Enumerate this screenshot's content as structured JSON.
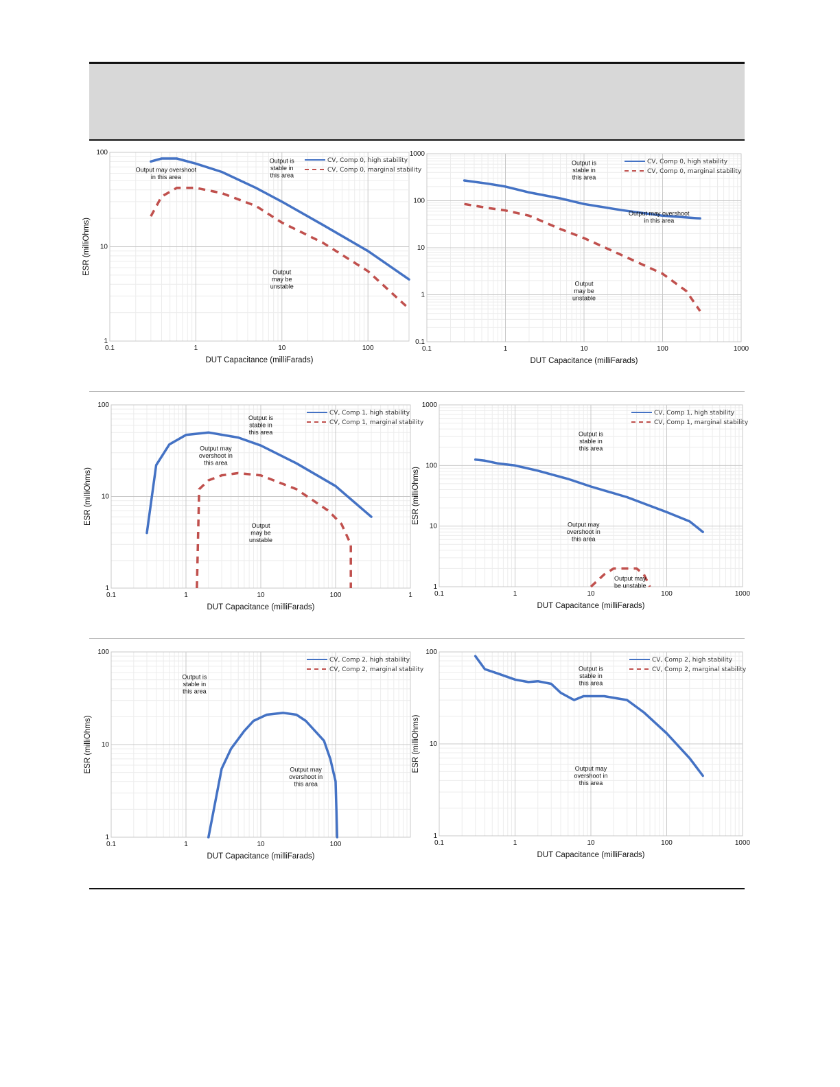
{
  "chart_data": [
    {
      "type": "line",
      "xlabel": "DUT Capacitance (milliFarads)",
      "ylabel": "ESR (milliOhms)",
      "x_scale": "log",
      "y_scale": "log",
      "xlim": [
        0.1,
        300
      ],
      "ylim": [
        1,
        100
      ],
      "xticks": [
        "0.1",
        "1",
        "10",
        "100"
      ],
      "yticks": [
        "1",
        "10",
        "100"
      ],
      "legend_position": "top-right",
      "series": [
        {
          "name": "CV, Comp 0, high stability",
          "color": "#4472c4",
          "dash": false,
          "points": [
            [
              0.3,
              80
            ],
            [
              0.4,
              86
            ],
            [
              0.6,
              86
            ],
            [
              1,
              76
            ],
            [
              2,
              62
            ],
            [
              5,
              42
            ],
            [
              10,
              30
            ],
            [
              30,
              17
            ],
            [
              100,
              9
            ],
            [
              300,
              4.5
            ]
          ]
        },
        {
          "name": "CV, Comp 0, marginal stability",
          "color": "#c0504d",
          "dash": true,
          "points": [
            [
              0.3,
              21
            ],
            [
              0.4,
              34
            ],
            [
              0.6,
              42
            ],
            [
              1,
              42
            ],
            [
              2,
              37
            ],
            [
              5,
              27
            ],
            [
              10,
              18
            ],
            [
              30,
              11
            ],
            [
              100,
              5.5
            ],
            [
              300,
              2.2
            ]
          ]
        }
      ],
      "annotations": [
        {
          "lines": [
            "Output may overshoot",
            "in this area"
          ],
          "x": 0.45,
          "y": 60
        },
        {
          "lines": [
            "Output is",
            "stable in",
            "this area"
          ],
          "x": 10,
          "y": 68
        },
        {
          "lines": [
            "Output",
            "may be",
            "unstable"
          ],
          "x": 10,
          "y": 4.5
        }
      ]
    },
    {
      "type": "line",
      "xlabel": "DUT Capacitance (milliFarads)",
      "ylabel": "",
      "x_scale": "log",
      "y_scale": "log",
      "xlim": [
        0.1,
        1000
      ],
      "ylim": [
        0.1,
        1000
      ],
      "xticks": [
        "0.1",
        "1",
        "10",
        "100",
        "1000"
      ],
      "yticks": [
        "0.1",
        "1",
        "10",
        "100",
        "1000"
      ],
      "legend_position": "top-right",
      "series": [
        {
          "name": "CV, Comp 0, high stability",
          "color": "#4472c4",
          "dash": false,
          "points": [
            [
              0.3,
              270
            ],
            [
              0.6,
              230
            ],
            [
              1,
              200
            ],
            [
              2,
              150
            ],
            [
              5,
              112
            ],
            [
              10,
              85
            ],
            [
              30,
              63
            ],
            [
              100,
              48
            ],
            [
              300,
              42
            ]
          ]
        },
        {
          "name": "CV, Comp 0, marginal stability",
          "color": "#c0504d",
          "dash": true,
          "points": [
            [
              0.3,
              85
            ],
            [
              0.6,
              70
            ],
            [
              1,
              62
            ],
            [
              2,
              48
            ],
            [
              5,
              25
            ],
            [
              10,
              16
            ],
            [
              30,
              7
            ],
            [
              100,
              2.8
            ],
            [
              200,
              1.2
            ],
            [
              300,
              0.45
            ]
          ]
        }
      ],
      "annotations": [
        {
          "lines": [
            "Output is",
            "stable in",
            "this area"
          ],
          "x": 10,
          "y": 450
        },
        {
          "lines": [
            "Output may overshoot",
            "in this area"
          ],
          "x": 90,
          "y": 45
        },
        {
          "lines": [
            "Output",
            "may be",
            "unstable"
          ],
          "x": 10,
          "y": 1.2
        }
      ]
    },
    {
      "type": "line",
      "xlabel": "DUT Capacitance (milliFarads)",
      "ylabel": "ESR (milliOhms)",
      "x_scale": "log",
      "y_scale": "log",
      "xlim": [
        0.1,
        1000
      ],
      "ylim": [
        1,
        100
      ],
      "xticks": [
        "0.1",
        "1",
        "10",
        "100",
        "1"
      ],
      "yticks": [
        "1",
        "10",
        "100"
      ],
      "legend_position": "top-right",
      "series": [
        {
          "name": "CV, Comp 1, high stability",
          "color": "#4472c4",
          "dash": false,
          "points": [
            [
              0.3,
              4
            ],
            [
              0.4,
              22
            ],
            [
              0.6,
              37
            ],
            [
              1,
              47
            ],
            [
              2,
              50
            ],
            [
              5,
              44
            ],
            [
              10,
              36
            ],
            [
              30,
              23
            ],
            [
              100,
              13
            ],
            [
              300,
              6
            ]
          ]
        },
        {
          "name": "CV, Comp 1, marginal stability",
          "color": "#c0504d",
          "dash": true,
          "points": [
            [
              1.4,
              1
            ],
            [
              1.5,
              12
            ],
            [
              2,
              15
            ],
            [
              3,
              17
            ],
            [
              5,
              18
            ],
            [
              10,
              17
            ],
            [
              30,
              12
            ],
            [
              80,
              7
            ],
            [
              120,
              5
            ],
            [
              160,
              3
            ],
            [
              160,
              1
            ]
          ]
        }
      ],
      "annotations": [
        {
          "lines": [
            "Output is",
            "stable in",
            "this area"
          ],
          "x": 10,
          "y": 60
        },
        {
          "lines": [
            "Output may",
            "overshoot in",
            "this area"
          ],
          "x": 2.5,
          "y": 28
        },
        {
          "lines": [
            "Output",
            "may be",
            "unstable"
          ],
          "x": 10,
          "y": 4
        }
      ]
    },
    {
      "type": "line",
      "xlabel": "DUT Capacitance (milliFarads)",
      "ylabel": "ESR (milliOhms)",
      "x_scale": "log",
      "y_scale": "log",
      "xlim": [
        0.1,
        1000
      ],
      "ylim": [
        1,
        1000
      ],
      "xticks": [
        "0.1",
        "1",
        "10",
        "100",
        "1000"
      ],
      "yticks": [
        "1",
        "10",
        "100",
        "1000"
      ],
      "legend_position": "top-right",
      "series": [
        {
          "name": "CV, Comp 1, high stability",
          "color": "#4472c4",
          "dash": false,
          "points": [
            [
              0.3,
              125
            ],
            [
              0.4,
              120
            ],
            [
              0.6,
              108
            ],
            [
              1,
              100
            ],
            [
              2,
              82
            ],
            [
              5,
              60
            ],
            [
              10,
              45
            ],
            [
              30,
              30
            ],
            [
              100,
              17
            ],
            [
              200,
              12
            ],
            [
              300,
              8
            ]
          ]
        },
        {
          "name": "CV, Comp 1, marginal stability",
          "color": "#c0504d",
          "dash": true,
          "points": [
            [
              10,
              1
            ],
            [
              15,
              1.6
            ],
            [
              20,
              2
            ],
            [
              40,
              2
            ],
            [
              50,
              1.6
            ],
            [
              60,
              1
            ]
          ]
        }
      ],
      "annotations": [
        {
          "lines": [
            "Output is",
            "stable in",
            "this area"
          ],
          "x": 10,
          "y": 250
        },
        {
          "lines": [
            "Output may",
            "overshoot in",
            "this area"
          ],
          "x": 8,
          "y": 8
        },
        {
          "lines": [
            "Output may",
            "be unstable"
          ],
          "x": 33,
          "y": 1.2
        }
      ]
    },
    {
      "type": "line",
      "xlabel": "DUT Capacitance (milliFarads)",
      "ylabel": "ESR (milliOhms)",
      "x_scale": "log",
      "y_scale": "log",
      "xlim": [
        0.1,
        1000
      ],
      "ylim": [
        1,
        100
      ],
      "xticks": [
        "0.1",
        "1",
        "10",
        "100"
      ],
      "yticks": [
        "1",
        "10",
        "100"
      ],
      "legend_position": "top-right",
      "series": [
        {
          "name": "CV, Comp 2, high stability",
          "color": "#4472c4",
          "dash": false,
          "points": [
            [
              2,
              1
            ],
            [
              3,
              5.5
            ],
            [
              4,
              9
            ],
            [
              6,
              14
            ],
            [
              8,
              18
            ],
            [
              12,
              21
            ],
            [
              20,
              22
            ],
            [
              30,
              21
            ],
            [
              40,
              18
            ],
            [
              70,
              11
            ],
            [
              85,
              7
            ],
            [
              100,
              4
            ],
            [
              105,
              1
            ]
          ]
        },
        {
          "name": "CV, Comp 2, marginal stability",
          "color": "#c0504d",
          "dash": true,
          "points": []
        }
      ],
      "annotations": [
        {
          "lines": [
            "Output is",
            "stable in",
            "this area"
          ],
          "x": 1.3,
          "y": 45
        },
        {
          "lines": [
            "Output may",
            "overshoot in",
            "this area"
          ],
          "x": 40,
          "y": 4.5
        }
      ]
    },
    {
      "type": "line",
      "xlabel": "DUT Capacitance (milliFarads)",
      "ylabel": "ESR (milliOhms)",
      "x_scale": "log",
      "y_scale": "log",
      "xlim": [
        0.1,
        1000
      ],
      "ylim": [
        1,
        100
      ],
      "xticks": [
        "0.1",
        "1",
        "10",
        "100",
        "1000"
      ],
      "yticks": [
        "1",
        "10",
        "100"
      ],
      "legend_position": "top-right",
      "series": [
        {
          "name": "CV, Comp 2, high stability",
          "color": "#4472c4",
          "dash": false,
          "points": [
            [
              0.3,
              90
            ],
            [
              0.4,
              65
            ],
            [
              0.6,
              58
            ],
            [
              1,
              50
            ],
            [
              1.5,
              47
            ],
            [
              2,
              48
            ],
            [
              3,
              45
            ],
            [
              4,
              36
            ],
            [
              6,
              30
            ],
            [
              8,
              33
            ],
            [
              15,
              33
            ],
            [
              30,
              30
            ],
            [
              50,
              22
            ],
            [
              100,
              13
            ],
            [
              200,
              7
            ],
            [
              300,
              4.5
            ]
          ]
        },
        {
          "name": "CV, Comp 2, marginal stability",
          "color": "#c0504d",
          "dash": true,
          "points": []
        }
      ],
      "annotations": [
        {
          "lines": [
            "Output is",
            "stable in",
            "this area"
          ],
          "x": 10,
          "y": 55
        },
        {
          "lines": [
            "Output may",
            "overshoot in",
            "this area"
          ],
          "x": 10,
          "y": 4.5
        }
      ]
    }
  ]
}
